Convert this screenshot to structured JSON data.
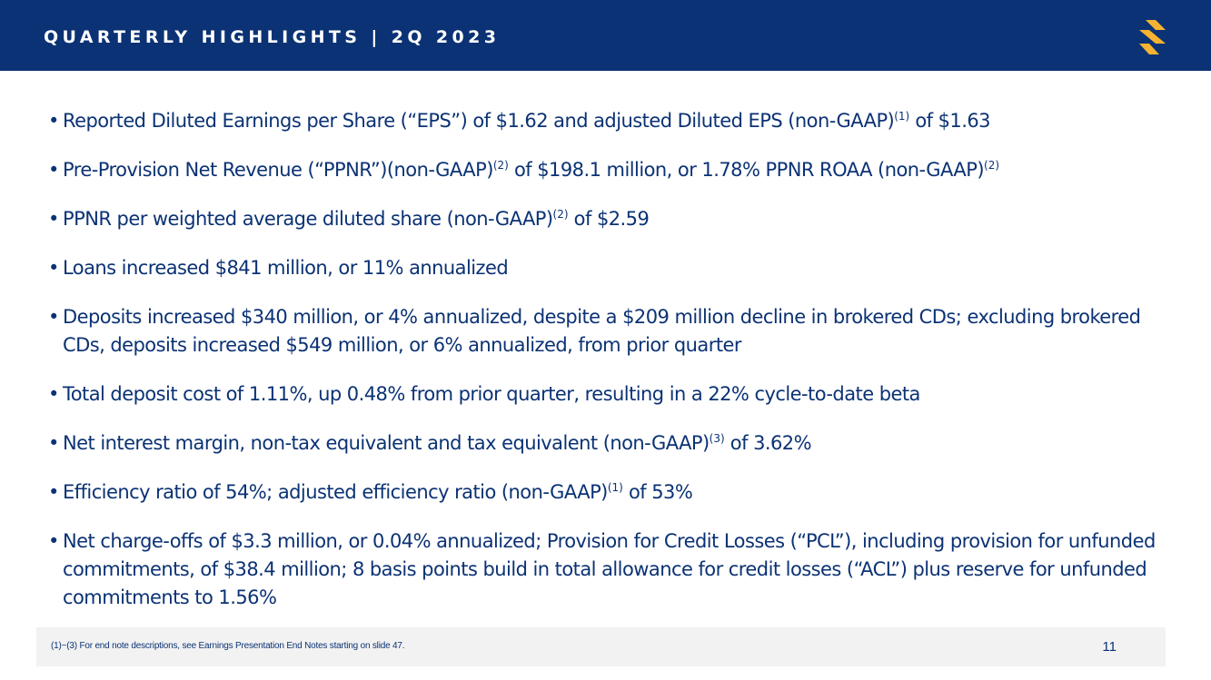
{
  "header": {
    "title": "QUARTERLY HIGHLIGHTS | 2Q 2023",
    "logo_icon": "brand-s-logo-icon",
    "background_color": "#0b3274",
    "logo_color": "#f6b332"
  },
  "bullets": [
    {
      "parts": [
        {
          "text": "Reported Diluted Earnings per Share (“EPS”) of $1.62 and adjusted Diluted EPS (non-GAAP)"
        },
        {
          "sup": "(1)"
        },
        {
          "text": " of $1.63"
        }
      ]
    },
    {
      "parts": [
        {
          "text": "Pre-Provision Net Revenue (“PPNR”)(non-GAAP)"
        },
        {
          "sup": "(2)"
        },
        {
          "text": " of $198.1 million, or 1.78% PPNR ROAA (non-GAAP)"
        },
        {
          "sup": "(2)"
        }
      ]
    },
    {
      "parts": [
        {
          "text": "PPNR per weighted average diluted share (non-GAAP)"
        },
        {
          "sup": "(2)"
        },
        {
          "text": " of $2.59"
        }
      ]
    },
    {
      "parts": [
        {
          "text": "Loans increased $841 million, or 11% annualized"
        }
      ]
    },
    {
      "parts": [
        {
          "text": "Deposits increased $340 million, or 4% annualized, despite a $209 million decline in brokered CDs; excluding brokered CDs, deposits increased $549 million, or 6% annualized, from prior quarter"
        }
      ]
    },
    {
      "parts": [
        {
          "text": "Total deposit cost of 1.11%, up 0.48% from prior quarter, resulting in a 22% cycle-to-date beta"
        }
      ]
    },
    {
      "parts": [
        {
          "text": "Net interest margin, non-tax equivalent and tax equivalent (non-GAAP)"
        },
        {
          "sup": "(3)"
        },
        {
          "text": " of 3.62%"
        }
      ]
    },
    {
      "parts": [
        {
          "text": "Efficiency ratio of 54%; adjusted efficiency ratio (non-GAAP)"
        },
        {
          "sup": "(1)"
        },
        {
          "text": " of 53%"
        }
      ]
    },
    {
      "parts": [
        {
          "text": "Net charge-offs of $3.3 million, or 0.04% annualized; Provision for Credit Losses (“PCL”), including provision for unfunded commitments, of $38.4 million; 8 basis points build in total allowance for credit losses (“ACL”) plus reserve for unfunded commitments to 1.56%"
        }
      ]
    }
  ],
  "footer": {
    "footnote": "(1)~(3)  For end note descriptions, see Earnings Presentation End Notes starting on slide 47.",
    "page_number": "11",
    "background_color": "#f2f2f2"
  },
  "text_color": "#0b3274"
}
